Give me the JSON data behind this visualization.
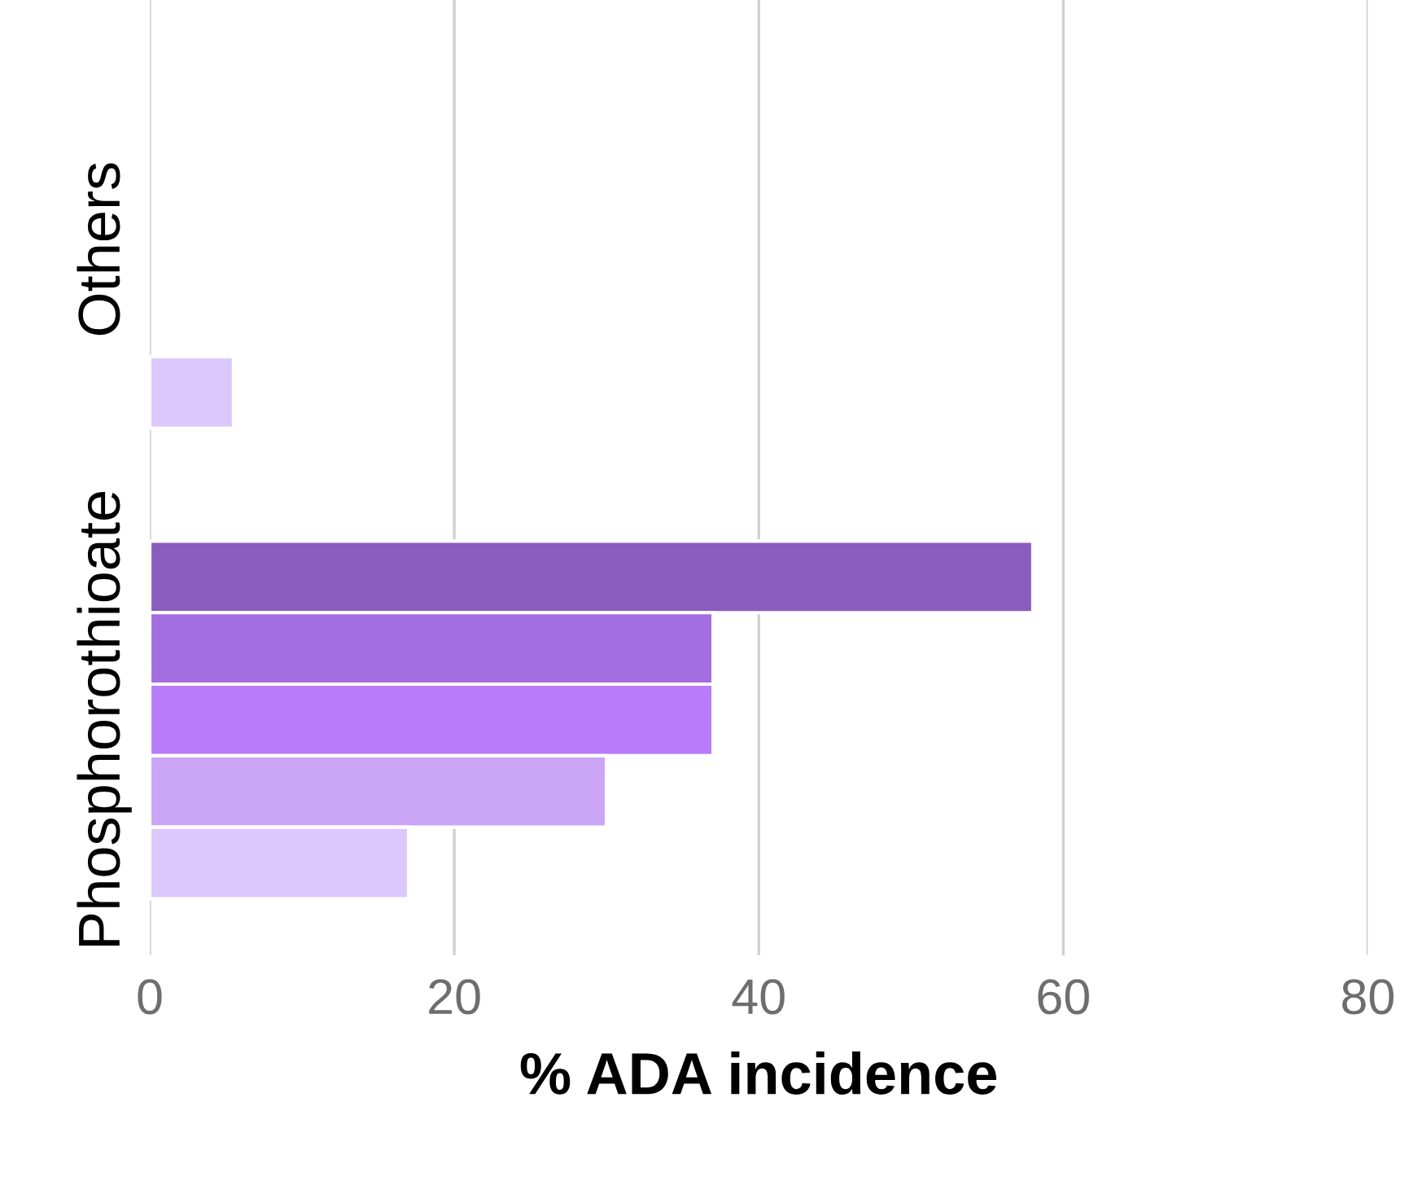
{
  "chart_data": {
    "type": "bar",
    "orientation": "horizontal",
    "xlabel": "% ADA incidence",
    "categories": [
      "Others",
      "Phosphorothioate"
    ],
    "series": [
      {
        "color": "#8a5cbd",
        "values": [
          null,
          58
        ]
      },
      {
        "color": "#a36ee0",
        "values": [
          null,
          37
        ]
      },
      {
        "color": "#b87cf8",
        "values": [
          null,
          37
        ]
      },
      {
        "color": "#cba6f7",
        "values": [
          null,
          30
        ]
      },
      {
        "color": "#dcc8fb",
        "values": [
          5.5,
          17
        ]
      }
    ],
    "xlim": [
      0,
      80
    ],
    "xticks": [
      0,
      20,
      40,
      60,
      80
    ],
    "grid": "x",
    "legend": false
  }
}
